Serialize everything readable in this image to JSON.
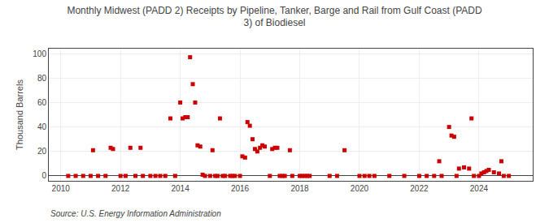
{
  "chart_data": {
    "type": "scatter",
    "title": "Monthly Midwest (PADD 2) Receipts by Pipeline, Tanker, Barge and Rail from Gulf Coast (PADD\n3) of Biodiesel",
    "ylabel": "Thousand Barrels",
    "annotations": [
      "Source: U.S. Energy Information Administration"
    ],
    "color": "#cc0000",
    "marker": "square",
    "grid": true,
    "xlim": [
      2009.6,
      2025.8
    ],
    "ylim": [
      -4,
      104
    ],
    "xticks": [
      2010,
      2012,
      2014,
      2016,
      2018,
      2020,
      2022,
      2024
    ],
    "yticks": [
      0,
      20,
      40,
      60,
      80,
      100
    ],
    "x": [
      2010.25,
      2010.5,
      2010.75,
      2011.0,
      2011.08,
      2011.25,
      2011.5,
      2011.67,
      2011.75,
      2012.0,
      2012.17,
      2012.33,
      2012.5,
      2012.67,
      2012.75,
      2013.0,
      2013.17,
      2013.33,
      2013.5,
      2013.67,
      2013.83,
      2014.0,
      2014.08,
      2014.17,
      2014.25,
      2014.33,
      2014.42,
      2014.5,
      2014.58,
      2014.67,
      2014.75,
      2014.83,
      2015.0,
      2015.08,
      2015.17,
      2015.25,
      2015.33,
      2015.42,
      2015.5,
      2015.67,
      2015.75,
      2015.83,
      2016.0,
      2016.08,
      2016.17,
      2016.25,
      2016.33,
      2016.42,
      2016.5,
      2016.58,
      2016.67,
      2016.75,
      2016.83,
      2017.0,
      2017.08,
      2017.17,
      2017.25,
      2017.33,
      2017.42,
      2017.5,
      2017.67,
      2017.75,
      2018.0,
      2018.08,
      2018.17,
      2018.25,
      2018.33,
      2019.0,
      2019.25,
      2019.5,
      2020.0,
      2020.17,
      2020.33,
      2020.5,
      2021.0,
      2021.5,
      2022.0,
      2022.25,
      2022.5,
      2022.67,
      2022.75,
      2023.0,
      2023.08,
      2023.17,
      2023.25,
      2023.33,
      2023.5,
      2023.67,
      2023.75,
      2023.83,
      2024.0,
      2024.08,
      2024.17,
      2024.25,
      2024.33,
      2024.5,
      2024.67,
      2024.75,
      2024.83,
      2025.0
    ],
    "values": [
      0,
      0,
      0,
      0,
      21,
      0,
      0,
      23,
      22,
      0,
      0,
      23,
      0,
      23,
      0,
      0,
      0,
      0,
      0,
      47,
      0,
      60,
      47,
      48,
      48,
      97,
      75,
      60,
      25,
      24,
      1,
      0,
      0,
      21,
      0,
      0,
      47,
      0,
      0,
      0,
      0,
      0,
      0,
      16,
      15,
      44,
      41,
      30,
      22,
      20,
      23,
      25,
      24,
      0,
      22,
      23,
      23,
      0,
      0,
      0,
      21,
      0,
      0,
      0,
      0,
      0,
      0,
      0,
      0,
      21,
      0,
      0,
      0,
      0,
      0,
      0,
      0,
      0,
      0,
      12,
      0,
      40,
      33,
      32,
      0,
      6,
      7,
      6,
      47,
      0,
      0,
      2,
      3,
      4,
      5,
      3,
      2,
      12,
      0,
      0
    ]
  }
}
